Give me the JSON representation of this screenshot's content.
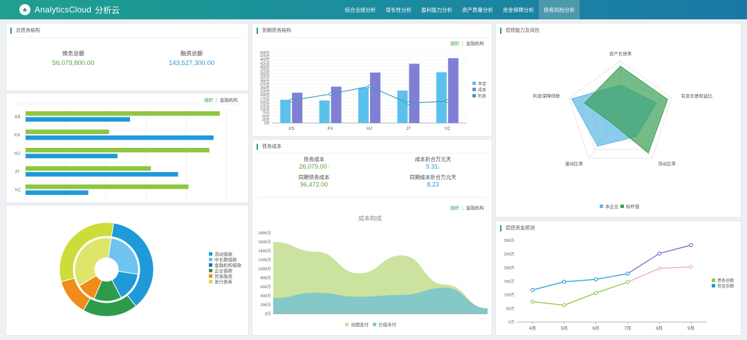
{
  "header": {
    "logo_glyph": "♣",
    "brand_name": "AnalyticsCloud",
    "brand_cn": "分析云",
    "tabs": [
      {
        "label": "综合业绩分析",
        "active": false
      },
      {
        "label": "增长性分析",
        "active": false
      },
      {
        "label": "盈利能力分析",
        "active": false
      },
      {
        "label": "资产质量分析",
        "active": false
      },
      {
        "label": "资金保障分析",
        "active": false
      },
      {
        "label": "债务风险分析",
        "active": true
      }
    ]
  },
  "toggle": {
    "left": "组织",
    "sep": "|",
    "right": "金融机构"
  },
  "debt_structure": {
    "title": "总债务结构",
    "kpis": [
      {
        "label": "债务总额",
        "value": "56,079,800.00",
        "color": "green"
      },
      {
        "label": "融资总额",
        "value": "143,527,300.00",
        "color": "blue"
      }
    ]
  },
  "hbar_chart": {
    "chart_data": {
      "type": "bar",
      "orientation": "horizontal",
      "categories": [
        "XS",
        "FX",
        "HJ",
        "JT",
        "YC"
      ],
      "series": [
        {
          "color": "#8dc63f",
          "values": [
            9.3,
            4.0,
            8.8,
            6.0,
            7.8
          ]
        },
        {
          "color": "#1f9ad8",
          "values": [
            5.0,
            9.0,
            4.4,
            7.3,
            3.0
          ]
        }
      ],
      "xlim": [
        0,
        10
      ]
    }
  },
  "pie_chart": {
    "chart_data": {
      "type": "pie",
      "style": "sunburst",
      "outer": [
        {
          "name": "流动借款",
          "value": 35,
          "color": "#1f9ad8"
        },
        {
          "name": "企业借款",
          "value": 18,
          "color": "#2e9b4b"
        },
        {
          "name": "贸易融资",
          "value": 12,
          "color": "#f08c1a"
        },
        {
          "name": "发行债券",
          "value": 30,
          "color": "#cddc39"
        }
      ],
      "inner": [
        {
          "name": "中长期借款",
          "value": 25,
          "color": "#6fc3ef"
        },
        {
          "name": "金融机构借款",
          "value": 15,
          "color": "#1f9ad8"
        },
        {
          "name": "企业借款",
          "value": 14,
          "color": "#2e9b4b"
        },
        {
          "name": "贸易融资",
          "value": 10,
          "color": "#f08c1a"
        },
        {
          "name": "发行债券",
          "value": 36,
          "color": "#dde66a"
        }
      ]
    },
    "legend": [
      {
        "label": "流动借款",
        "color": "#1f9ad8"
      },
      {
        "label": "中长期借款",
        "color": "#6fc3ef"
      },
      {
        "label": "金融机构借款",
        "color": "#1b6fb5"
      },
      {
        "label": "企业借款",
        "color": "#2e9b4b"
      },
      {
        "label": "贸易融资",
        "color": "#f08c1a"
      },
      {
        "label": "发行债券",
        "color": "#cddc39"
      }
    ]
  },
  "maturity": {
    "title": "到期债务结构",
    "chart_data": {
      "type": "bar",
      "categories": [
        "XS",
        "FX",
        "HJ",
        "JT",
        "YC"
      ],
      "series": [
        {
          "name": "本金",
          "type": "bar",
          "color": "#5bc0eb",
          "values": [
            165,
            160,
            250,
            230,
            360
          ]
        },
        {
          "name": "成本",
          "type": "bar",
          "color": "#7f7fd5",
          "values": [
            215,
            258,
            358,
            420,
            460
          ]
        },
        {
          "name": "利息",
          "type": "line",
          "color": "#3aa0b8",
          "values": [
            160,
            205,
            260,
            140,
            155
          ]
        }
      ],
      "ylim": [
        0,
        500
      ],
      "yticks": [
        "0万",
        "25万",
        "50万",
        "75万",
        "100万",
        "125万",
        "150万",
        "175万",
        "200万",
        "225万",
        "250万",
        "275万",
        "300万",
        "325万",
        "350万",
        "375万",
        "400万",
        "425万",
        "450万",
        "475万",
        "500万"
      ]
    }
  },
  "debt_cost": {
    "title": "债务成本",
    "items": [
      {
        "label": "债务成本",
        "value": "26,079.00",
        "arrow": "↑",
        "color": "green"
      },
      {
        "label": "成本折合万元天",
        "value": "9.31",
        "arrow": "↓",
        "color": "blue"
      },
      {
        "label": "同期债务成本",
        "value": "96,472.00",
        "arrow": "",
        "color": "green"
      },
      {
        "label": "同期成本折合万元天",
        "value": "8.23",
        "arrow": "",
        "color": "blue"
      }
    ]
  },
  "cost_structure": {
    "chart_data": {
      "type": "area",
      "title": "成本构成",
      "points": 6,
      "series": [
        {
          "name": "当期支付",
          "color": "#c9e29a",
          "values": [
            1600,
            1380,
            900,
            1300,
            650,
            120
          ]
        },
        {
          "name": "已借未付",
          "color": "#7fc6c9",
          "values": [
            350,
            470,
            380,
            420,
            580,
            120
          ]
        }
      ],
      "ylim": [
        0,
        1800
      ],
      "yticks": [
        "0万",
        "200万",
        "400万",
        "600万",
        "800万",
        "1000万",
        "1200万",
        "1400万",
        "1600万",
        "1800万"
      ]
    }
  },
  "radar": {
    "title": "偿债能力及风险",
    "chart_data": {
      "type": "radar",
      "indicators": [
        "资产负债率",
        "有息负债权益比",
        "流动比率",
        "速动比率",
        "利息保障倍数"
      ],
      "series": [
        {
          "name": "本企业",
          "color": "#5bb8e6",
          "values": [
            0.55,
            0.7,
            0.5,
            0.72,
            0.95
          ]
        },
        {
          "name": "标杆值",
          "color": "#3aa057",
          "values": [
            0.9,
            0.92,
            0.88,
            0.22,
            0.7
          ]
        }
      ]
    }
  },
  "forecast": {
    "title": "偿债资金预测",
    "chart_data": {
      "type": "line",
      "categories": [
        "4月",
        "5月",
        "6月",
        "7月",
        "8月",
        "9月"
      ],
      "series": [
        {
          "name": "债务总额",
          "color": "#8dc63f",
          "values": [
            75,
            62,
            107,
            147,
            197,
            203
          ]
        },
        {
          "name": "资金余额",
          "color": "#1f9ad8",
          "values": [
            118,
            148,
            157,
            178,
            252,
            283
          ]
        }
      ],
      "segment_colors": {
        "green_to_pink_from": 3,
        "pink": "#f0a8c0",
        "blue_to_purple_from": 3,
        "purple": "#7b68c8"
      },
      "ylim": [
        0,
        300
      ],
      "yticks": [
        "0万",
        "50万",
        "100万",
        "150万",
        "200万",
        "250万",
        "300万"
      ]
    }
  }
}
